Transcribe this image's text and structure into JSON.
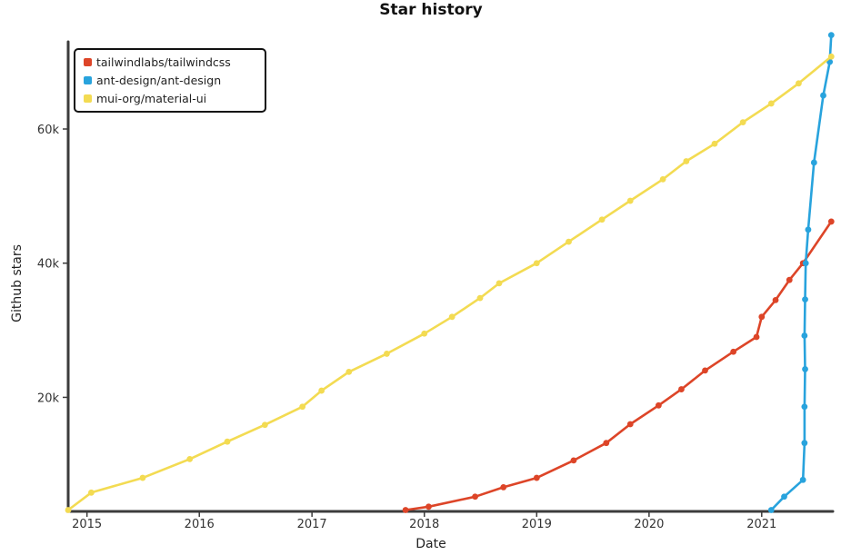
{
  "chart_data": {
    "type": "line",
    "title": "Star history",
    "xlabel": "Date",
    "ylabel": "Github stars",
    "xlim": [
      "2014-11-01",
      "2021-08-20"
    ],
    "ylim": [
      3000,
      73000
    ],
    "x_ticks": [
      "2015-01-01",
      "2016-01-01",
      "2017-01-01",
      "2018-01-01",
      "2019-01-01",
      "2020-01-01",
      "2021-01-01"
    ],
    "x_tick_labels": [
      "2015",
      "2016",
      "2017",
      "2018",
      "2019",
      "2020",
      "2021"
    ],
    "y_ticks": [
      20000,
      40000,
      60000
    ],
    "y_tick_labels": [
      "20k",
      "40k",
      "60k"
    ],
    "grid": false,
    "legend_position": "top-left",
    "series": [
      {
        "name": "tailwindlabs/tailwindcss",
        "color": "#dd4528",
        "points": [
          [
            "2017-11-01",
            3200
          ],
          [
            "2018-01-15",
            3700
          ],
          [
            "2018-06-15",
            5200
          ],
          [
            "2018-09-15",
            6600
          ],
          [
            "2019-01-01",
            8000
          ],
          [
            "2019-05-01",
            10600
          ],
          [
            "2019-08-15",
            13200
          ],
          [
            "2019-11-01",
            16000
          ],
          [
            "2020-02-01",
            18800
          ],
          [
            "2020-04-15",
            21200
          ],
          [
            "2020-07-01",
            24000
          ],
          [
            "2020-10-01",
            26800
          ],
          [
            "2020-12-15",
            29000
          ],
          [
            "2021-01-01",
            32000
          ],
          [
            "2021-02-15",
            34500
          ],
          [
            "2021-04-01",
            37500
          ],
          [
            "2021-05-15",
            40000
          ],
          [
            "2021-08-15",
            46200
          ]
        ]
      },
      {
        "name": "ant-design/ant-design",
        "color": "#28a3dd",
        "points": [
          [
            "2021-02-01",
            3200
          ],
          [
            "2021-03-15",
            5200
          ],
          [
            "2021-05-15",
            7700
          ],
          [
            "2021-05-20",
            13200
          ],
          [
            "2021-05-20",
            18600
          ],
          [
            "2021-05-22",
            24200
          ],
          [
            "2021-05-20",
            29200
          ],
          [
            "2021-05-22",
            34600
          ],
          [
            "2021-05-24",
            40000
          ],
          [
            "2021-06-01",
            45000
          ],
          [
            "2021-06-20",
            55000
          ],
          [
            "2021-07-20",
            65000
          ],
          [
            "2021-08-10",
            70000
          ],
          [
            "2021-08-15",
            74000
          ]
        ]
      },
      {
        "name": "mui-org/material-ui",
        "color": "#f3db52",
        "points": [
          [
            "2014-11-01",
            3200
          ],
          [
            "2015-01-15",
            5800
          ],
          [
            "2015-07-01",
            8000
          ],
          [
            "2015-12-01",
            10800
          ],
          [
            "2016-04-01",
            13400
          ],
          [
            "2016-08-01",
            15900
          ],
          [
            "2016-12-01",
            18600
          ],
          [
            "2017-02-01",
            21000
          ],
          [
            "2017-05-01",
            23800
          ],
          [
            "2017-09-01",
            26500
          ],
          [
            "2018-01-01",
            29500
          ],
          [
            "2018-04-01",
            32000
          ],
          [
            "2018-07-01",
            34800
          ],
          [
            "2018-09-01",
            37000
          ],
          [
            "2019-01-01",
            40000
          ],
          [
            "2019-04-15",
            43200
          ],
          [
            "2019-08-01",
            46500
          ],
          [
            "2019-11-01",
            49300
          ],
          [
            "2020-02-15",
            52500
          ],
          [
            "2020-05-01",
            55200
          ],
          [
            "2020-08-01",
            57800
          ],
          [
            "2020-11-01",
            61000
          ],
          [
            "2021-02-01",
            63800
          ],
          [
            "2021-05-01",
            66800
          ],
          [
            "2021-08-15",
            70800
          ]
        ]
      }
    ]
  }
}
